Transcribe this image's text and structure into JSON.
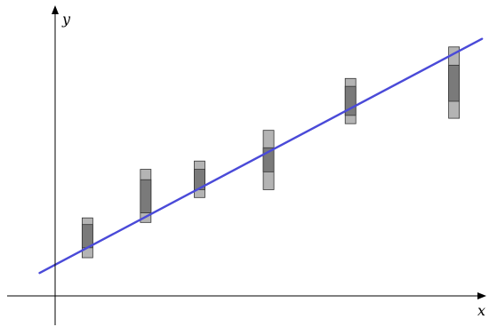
{
  "chart_data": {
    "type": "scatter",
    "title": "",
    "xlabel": "x",
    "ylabel": "y",
    "grid": false,
    "colors": {
      "fit_line": "#4a4ad8",
      "inner_interval": "#7a7a7a",
      "outer_interval": "#b4b4b4",
      "interval_border": "#333333",
      "axis": "#000000"
    },
    "xlim": [
      -0.36,
      10.0
    ],
    "ylim": [
      -0.45,
      6.6
    ],
    "fit_line": {
      "intercept": 0.75,
      "slope": 0.55,
      "x_range": [
        -0.36,
        9.9
      ]
    },
    "points": [
      {
        "x": 0.75,
        "y": 1.37,
        "inner": [
          1.16,
          1.72
        ],
        "outer": [
          0.92,
          1.88
        ]
      },
      {
        "x": 2.1,
        "y": 2.07,
        "inner": [
          2.0,
          2.8
        ],
        "outer": [
          1.77,
          3.05
        ]
      },
      {
        "x": 3.35,
        "y": 2.56,
        "inner": [
          2.56,
          3.05
        ],
        "outer": [
          2.37,
          3.25
        ]
      },
      {
        "x": 4.95,
        "y": 3.56,
        "inner": [
          2.99,
          3.57
        ],
        "outer": [
          2.56,
          3.99
        ]
      },
      {
        "x": 6.85,
        "y": 4.55,
        "inner": [
          4.35,
          5.05
        ],
        "outer": [
          4.15,
          5.24
        ]
      },
      {
        "x": 9.25,
        "y": 5.6,
        "inner": [
          4.69,
          5.56
        ],
        "outer": [
          4.28,
          6.0
        ]
      }
    ]
  }
}
